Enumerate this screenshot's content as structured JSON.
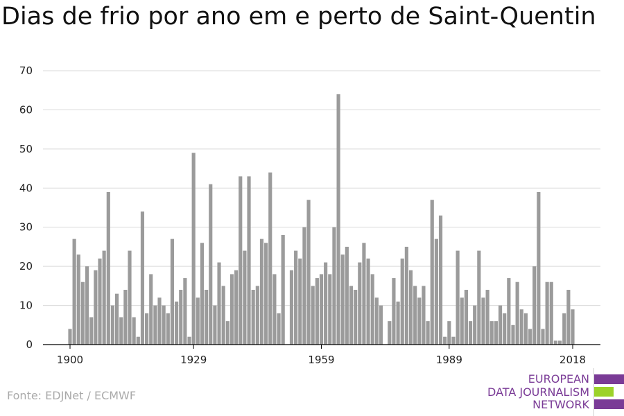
{
  "title": "Dias de frio por ano em e perto de Saint-Quentin",
  "source": "Fonte: EDJNet / ECMWF",
  "logo": {
    "lines": [
      "EUROPEAN",
      "DATA JOURNALISM",
      "NETWORK"
    ],
    "colors": {
      "purple": "#7a3b96",
      "green": "#9cd22a"
    }
  },
  "colors": {
    "bar": "#9b9b9b",
    "grid": "#d9d9d9",
    "axis": "#000000",
    "text": "#222222"
  },
  "chart_data": {
    "type": "bar",
    "title": "Dias de frio por ano em e perto de Saint-Quentin",
    "xlabel": "",
    "ylabel": "",
    "x": [
      1900,
      1901,
      1902,
      1903,
      1904,
      1905,
      1906,
      1907,
      1908,
      1909,
      1910,
      1911,
      1912,
      1913,
      1914,
      1915,
      1916,
      1917,
      1918,
      1919,
      1920,
      1921,
      1922,
      1923,
      1924,
      1925,
      1926,
      1927,
      1928,
      1929,
      1930,
      1931,
      1932,
      1933,
      1934,
      1935,
      1936,
      1937,
      1938,
      1939,
      1940,
      1941,
      1942,
      1943,
      1944,
      1945,
      1946,
      1947,
      1948,
      1949,
      1950,
      1951,
      1952,
      1953,
      1954,
      1955,
      1956,
      1957,
      1958,
      1959,
      1960,
      1961,
      1962,
      1963,
      1964,
      1965,
      1966,
      1967,
      1968,
      1969,
      1970,
      1971,
      1972,
      1973,
      1974,
      1975,
      1976,
      1977,
      1978,
      1979,
      1980,
      1981,
      1982,
      1983,
      1984,
      1985,
      1986,
      1987,
      1988,
      1989,
      1990,
      1991,
      1992,
      1993,
      1994,
      1995,
      1996,
      1997,
      1998,
      1999,
      2000,
      2001,
      2002,
      2003,
      2004,
      2005,
      2006,
      2007,
      2008,
      2009,
      2010,
      2011,
      2012,
      2013,
      2014,
      2015,
      2016,
      2017,
      2018
    ],
    "values": [
      4,
      27,
      23,
      16,
      20,
      7,
      19,
      22,
      24,
      39,
      10,
      13,
      7,
      14,
      24,
      7,
      2,
      34,
      8,
      18,
      10,
      12,
      10,
      8,
      27,
      11,
      14,
      17,
      2,
      49,
      12,
      26,
      14,
      41,
      10,
      21,
      15,
      6,
      18,
      19,
      43,
      24,
      43,
      14,
      15,
      27,
      26,
      44,
      18,
      8,
      28,
      0,
      19,
      24,
      22,
      30,
      37,
      15,
      17,
      18,
      21,
      18,
      30,
      64,
      23,
      25,
      15,
      14,
      21,
      26,
      22,
      18,
      12,
      10,
      0,
      6,
      17,
      11,
      22,
      25,
      19,
      15,
      12,
      15,
      6,
      37,
      27,
      33,
      2,
      6,
      2,
      24,
      12,
      14,
      6,
      10,
      24,
      12,
      14,
      6,
      6,
      10,
      8,
      17,
      5,
      16,
      9,
      8,
      4,
      20,
      39,
      4,
      16,
      16,
      1,
      1,
      8,
      14,
      9
    ],
    "x_ticks": [
      1900,
      1929,
      1959,
      1989,
      2018
    ],
    "y_ticks": [
      0,
      10,
      20,
      30,
      40,
      50,
      60,
      70
    ],
    "ylim": [
      0,
      70
    ],
    "grid": true,
    "legend": "none"
  }
}
